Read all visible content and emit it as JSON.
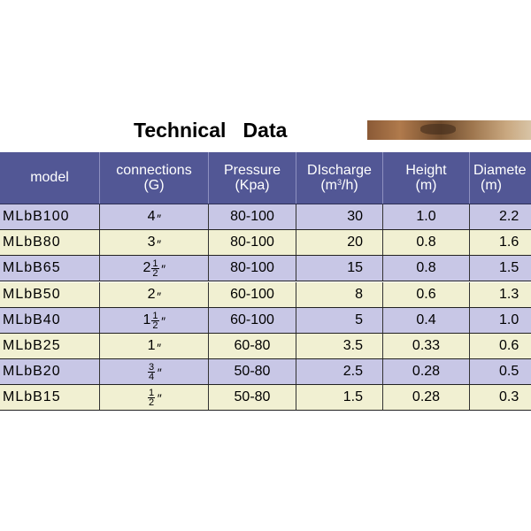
{
  "title": "Technical   Data",
  "headers": {
    "model": "model",
    "connections": "connections",
    "connections_unit": "(G)",
    "pressure": "Pressure",
    "pressure_unit": "(Kpa)",
    "discharge": "DIscharge",
    "discharge_unit_pre": "(m",
    "discharge_unit_sup": "3",
    "discharge_unit_post": "/h)",
    "height": "Height",
    "height_unit": "(m)",
    "diameter": "Diamete",
    "diameter_unit": "(m)"
  },
  "rows": [
    {
      "model": "MLbB100",
      "conn_whole": "4",
      "conn_num": "",
      "conn_den": "",
      "pressure": "80-100",
      "discharge": "30",
      "height": "1.0",
      "diameter": "2.2"
    },
    {
      "model": "MLbB80",
      "conn_whole": "3",
      "conn_num": "",
      "conn_den": "",
      "pressure": "80-100",
      "discharge": "20",
      "height": "0.8",
      "diameter": "1.6"
    },
    {
      "model": "MLbB65",
      "conn_whole": "2",
      "conn_num": "1",
      "conn_den": "2",
      "pressure": "80-100",
      "discharge": "15",
      "height": "0.8",
      "diameter": "1.5"
    },
    {
      "model": "MLbB50",
      "conn_whole": "2",
      "conn_num": "",
      "conn_den": "",
      "pressure": "60-100",
      "discharge": "8",
      "height": "0.6",
      "diameter": "1.3"
    },
    {
      "model": "MLbB40",
      "conn_whole": "1",
      "conn_num": "1",
      "conn_den": "2",
      "pressure": "60-100",
      "discharge": "5",
      "height": "0.4",
      "diameter": "1.0"
    },
    {
      "model": "MLbB25",
      "conn_whole": "1",
      "conn_num": "",
      "conn_den": "",
      "pressure": "60-80",
      "discharge": "3.5",
      "height": "0.33",
      "diameter": "0.6"
    },
    {
      "model": "MLbB20",
      "conn_whole": "",
      "conn_num": "3",
      "conn_den": "4",
      "pressure": "50-80",
      "discharge": "2.5",
      "height": "0.28",
      "diameter": "0.5"
    },
    {
      "model": "MLbB15",
      "conn_whole": "",
      "conn_num": "1",
      "conn_den": "2",
      "pressure": "50-80",
      "discharge": "1.5",
      "height": "0.28",
      "diameter": "0.3"
    }
  ],
  "inch_mark": "″"
}
